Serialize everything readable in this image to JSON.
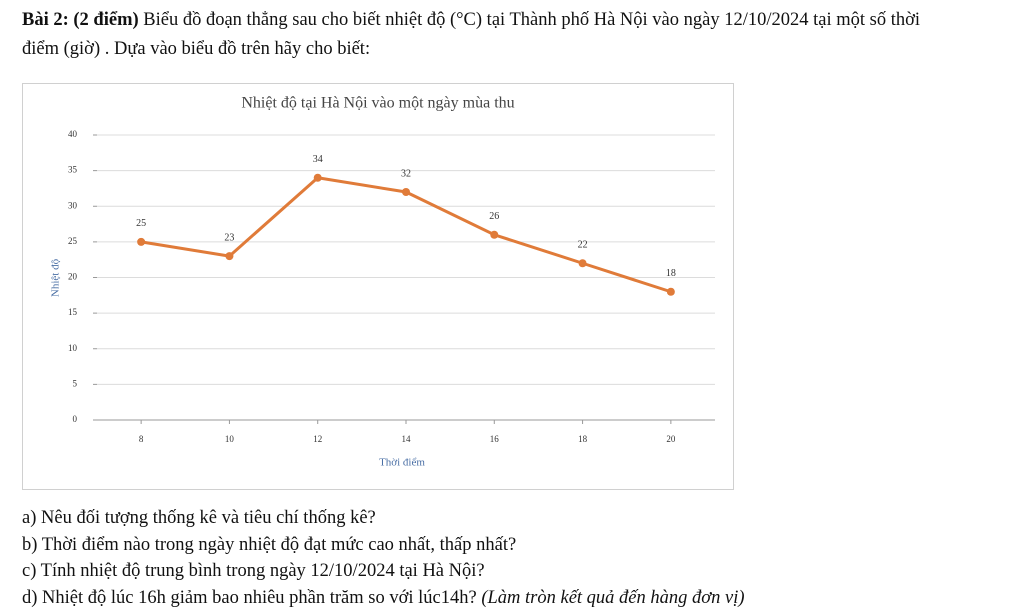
{
  "problem": {
    "label": "Bài 2: (2 điểm)",
    "text": "Biểu đồ đoạn thẳng sau cho biết nhiệt độ (°C) tại Thành phố Hà Nội vào ngày 12/10/2024 tại một số thời điểm (giờ) . Dựa vào biểu đồ trên hãy cho biết:"
  },
  "chart_data": {
    "type": "line",
    "title": "Nhiệt độ tại Hà Nội vào một ngày mùa thu",
    "x_label": "Thời điểm",
    "y_label": "Nhiệt độ",
    "x": [
      8,
      10,
      12,
      14,
      16,
      18,
      20
    ],
    "series": [
      {
        "color": "#e07b39",
        "values": [
          25,
          23,
          34,
          32,
          26,
          22,
          18
        ]
      }
    ],
    "xlim": [
      7,
      21
    ],
    "xticks": [
      8,
      10,
      12,
      14,
      16,
      18,
      20
    ],
    "ylim": [
      0,
      40
    ],
    "yticks": [
      0,
      5,
      10,
      15,
      20,
      25,
      30,
      35,
      40
    ],
    "grid": true
  },
  "questions": [
    {
      "text": "a) Nêu đối tượng thống kê và tiêu chí thống kê?"
    },
    {
      "text": "b) Thời điểm nào trong ngày nhiệt độ đạt mức cao nhất, thấp nhất?"
    },
    {
      "text": "c) Tính nhiệt độ trung bình trong ngày 12/10/2024 tại Hà Nội?"
    },
    {
      "text": "d) Nhiệt độ lúc 16h giảm bao nhiêu phần trăm so với lúc14h?",
      "note": "(Làm tròn kết quả đến hàng đơn vị)"
    }
  ]
}
